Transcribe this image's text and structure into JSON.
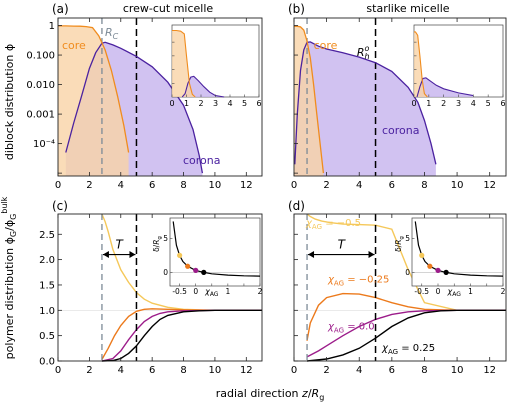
{
  "figure": {
    "ylabel_top": "diblock distribution ϕ",
    "ylabel_bottom": "polymer distribution ϕG/ϕGbulk",
    "xlabel": "radial direction z/Rg"
  },
  "colors": {
    "core_line": "#f08c1e",
    "core_fill": "#f9d3a6",
    "corona_line": "#4b22a0",
    "corona_fill": "#c9b7ee",
    "dashed_gray": "#7d8b97",
    "dashed_black": "#000000",
    "chi_m05": "#f5c85a",
    "chi_m025": "#ec7a1c",
    "chi_0": "#9c1c8a",
    "chi_025": "#000000"
  },
  "chart_data": [
    {
      "id": "a",
      "panel_label": "(a)",
      "title": "crew-cut micelle",
      "type": "area",
      "yscale": "log",
      "xlim": [
        0,
        13
      ],
      "ylim": [
        8e-06,
        1.8
      ],
      "x_ticks": [
        "0",
        "2",
        "4",
        "6",
        "8",
        "10",
        "12"
      ],
      "y_ticks": [
        {
          "v": 1,
          "label": "1"
        },
        {
          "v": 0.1,
          "label": "0.100"
        },
        {
          "v": 0.01,
          "label": "0.010"
        },
        {
          "v": 0.001,
          "label": "0.001"
        },
        {
          "v": 0.0001,
          "label": "10⁻⁴"
        }
      ],
      "vlines": {
        "gray": 2.8,
        "black": 5.0
      },
      "annotations": {
        "rc": "R",
        "rc_sub": "C",
        "core": "core",
        "corona": "corona"
      },
      "series": [
        {
          "name": "core",
          "x": [
            0,
            0.5,
            1.0,
            1.4,
            1.8,
            2.2,
            2.6,
            3.0,
            3.4,
            3.8,
            4.2,
            4.5
          ],
          "y": [
            0.97,
            0.97,
            0.96,
            0.95,
            0.92,
            0.85,
            0.45,
            0.15,
            0.03,
            0.004,
            0.0004,
            5e-05
          ]
        },
        {
          "name": "corona",
          "x": [
            0.5,
            1.0,
            1.5,
            2.0,
            2.4,
            2.8,
            3.0,
            3.5,
            4.0,
            5.0,
            6.0,
            7.0,
            8.0,
            8.6,
            9.0,
            9.2
          ],
          "y": [
            5e-05,
            0.0005,
            0.004,
            0.035,
            0.12,
            0.25,
            0.27,
            0.22,
            0.17,
            0.09,
            0.04,
            0.012,
            0.002,
            0.0003,
            4e-05,
            1e-05
          ]
        }
      ],
      "inset": {
        "xlim": [
          0,
          6
        ],
        "ylim": [
          0,
          1.05
        ],
        "x_ticks": [
          "0",
          "1",
          "2",
          "3",
          "4",
          "5",
          "6"
        ],
        "series": [
          {
            "name": "core",
            "x": [
              0,
              0.3,
              0.6,
              0.85,
              1.0,
              1.2,
              1.4,
              1.6
            ],
            "y": [
              0.97,
              0.97,
              0.96,
              0.92,
              0.6,
              0.2,
              0.04,
              0.0
            ]
          },
          {
            "name": "corona",
            "x": [
              0.7,
              0.9,
              1.1,
              1.3,
              1.5,
              1.8,
              2.2,
              2.6,
              3.0,
              3.6
            ],
            "y": [
              0.0,
              0.05,
              0.2,
              0.29,
              0.3,
              0.24,
              0.15,
              0.07,
              0.02,
              0.0
            ]
          }
        ]
      }
    },
    {
      "id": "b",
      "panel_label": "(b)",
      "title": "starlike micelle",
      "type": "area",
      "yscale": "log",
      "xlim": [
        0,
        13
      ],
      "ylim": [
        8e-06,
        1.8
      ],
      "x_ticks": [
        "0",
        "2",
        "4",
        "6",
        "8",
        "10",
        "12"
      ],
      "y_ticks": [],
      "vlines": {
        "gray": 0.8,
        "black": 5.0
      },
      "annotations": {
        "rh": "R",
        "rh_sub": "h",
        "rh_sup": "o",
        "core": "core",
        "corona": "corona"
      },
      "series": [
        {
          "name": "core",
          "x": [
            0,
            0.2,
            0.4,
            0.6,
            0.8,
            1.0,
            1.2,
            1.4,
            1.6,
            1.8
          ],
          "y": [
            0.95,
            0.94,
            0.9,
            0.7,
            0.3,
            0.08,
            0.01,
            0.001,
            0.0001,
            1e-05
          ]
        },
        {
          "name": "corona",
          "x": [
            0.05,
            0.2,
            0.4,
            0.6,
            0.8,
            1.0,
            1.5,
            2.0,
            3.0,
            4.0,
            5.0,
            6.0,
            7.0,
            7.6,
            8.0,
            8.4,
            8.7
          ],
          "y": [
            2e-05,
            0.001,
            0.03,
            0.15,
            0.27,
            0.28,
            0.2,
            0.16,
            0.12,
            0.085,
            0.055,
            0.028,
            0.008,
            0.0025,
            0.0006,
            0.0001,
            2e-05
          ]
        }
      ],
      "inset": {
        "xlim": [
          0,
          6
        ],
        "ylim": [
          0,
          1.05
        ],
        "x_ticks": [
          "0",
          "1",
          "2",
          "3",
          "4",
          "5",
          "6"
        ],
        "series": [
          {
            "name": "core",
            "x": [
              0,
              0.1,
              0.25,
              0.4,
              0.55,
              0.7,
              0.9
            ],
            "y": [
              0.95,
              0.95,
              0.9,
              0.6,
              0.25,
              0.05,
              0.0
            ]
          },
          {
            "name": "corona",
            "x": [
              0.2,
              0.4,
              0.6,
              0.8,
              1.0,
              1.5,
              2.0,
              3.0,
              4.0
            ],
            "y": [
              0.0,
              0.15,
              0.27,
              0.28,
              0.25,
              0.17,
              0.12,
              0.06,
              0.02
            ]
          }
        ]
      }
    },
    {
      "id": "c",
      "panel_label": "(c)",
      "type": "line",
      "xlim": [
        0,
        13
      ],
      "ylim": [
        0,
        2.9
      ],
      "x_ticks": [
        "0",
        "2",
        "4",
        "6",
        "8",
        "10",
        "12"
      ],
      "y_ticks": [
        "0.0",
        "0.5",
        "1.0",
        "1.5",
        "2.0",
        "2.5"
      ],
      "vlines": {
        "gray": 2.8,
        "black": 5.0
      },
      "arrow_label": "T",
      "series": [
        {
          "name": "χAG = -0.5",
          "x": [
            2.8,
            3.0,
            3.2,
            3.5,
            4.0,
            4.5,
            5.0,
            5.5,
            6.0,
            7.0,
            8.0,
            10.0,
            13.0
          ],
          "y": [
            2.9,
            2.75,
            2.55,
            2.2,
            1.8,
            1.55,
            1.35,
            1.22,
            1.14,
            1.06,
            1.02,
            1.0,
            1.0
          ]
        },
        {
          "name": "χAG = -0.25",
          "x": [
            2.8,
            3.2,
            3.6,
            4.0,
            4.5,
            5.0,
            5.5,
            6.0,
            7.0,
            8.0,
            10.0,
            13.0
          ],
          "y": [
            0.03,
            0.25,
            0.5,
            0.7,
            0.88,
            0.98,
            1.02,
            1.03,
            1.02,
            1.01,
            1.0,
            1.0
          ]
        },
        {
          "name": "χAG = 0.0",
          "x": [
            2.8,
            3.5,
            4.0,
            4.5,
            5.0,
            5.5,
            6.0,
            6.5,
            7.0,
            8.0,
            10.0,
            13.0
          ],
          "y": [
            0.0,
            0.05,
            0.2,
            0.42,
            0.62,
            0.78,
            0.88,
            0.94,
            0.97,
            0.99,
            1.0,
            1.0
          ]
        },
        {
          "name": "χAG = 0.25",
          "x": [
            2.8,
            3.5,
            4.0,
            4.5,
            5.0,
            5.5,
            6.0,
            6.5,
            7.0,
            8.0,
            9.0,
            10.0,
            13.0
          ],
          "y": [
            0.0,
            0.01,
            0.05,
            0.15,
            0.3,
            0.5,
            0.68,
            0.82,
            0.9,
            0.97,
            0.99,
            1.0,
            1.0
          ]
        }
      ],
      "inset": {
        "xlim": [
          -0.8,
          2.0
        ],
        "ylim": [
          -2.0,
          8.0
        ],
        "x_ticks": [
          "-0.5",
          "0",
          "0.5",
          "1",
          "1.5",
          "2"
        ],
        "y_ticks": [
          "0",
          "5"
        ],
        "xlabel": "χAG",
        "ylabel": "δ/Rg",
        "curve_x": [
          -0.7,
          -0.6,
          -0.5,
          -0.4,
          -0.25,
          0.0,
          0.25,
          0.5,
          1.0,
          1.5,
          2.0
        ],
        "curve_y": [
          7.5,
          4.0,
          2.5,
          1.6,
          0.9,
          0.3,
          0.0,
          -0.2,
          -0.4,
          -0.5,
          -0.55
        ],
        "points": [
          {
            "x": -0.5,
            "y": 2.5,
            "name": "χAG = -0.5"
          },
          {
            "x": -0.25,
            "y": 0.9,
            "name": "χAG = -0.25"
          },
          {
            "x": 0.0,
            "y": 0.3,
            "name": "χAG = 0.0"
          },
          {
            "x": 0.25,
            "y": 0.0,
            "name": "χAG = 0.25"
          }
        ]
      }
    },
    {
      "id": "d",
      "panel_label": "(d)",
      "type": "line",
      "xlim": [
        0,
        13
      ],
      "ylim": [
        0,
        2.9
      ],
      "x_ticks": [
        "0",
        "2",
        "4",
        "6",
        "8",
        "10",
        "12"
      ],
      "y_ticks": [],
      "vlines": {
        "gray": 0.8,
        "black": 5.0
      },
      "arrow_label": "T",
      "labels": {
        "m05": "χAG = −0.5",
        "m025": "χAG = −0.25",
        "z0": "χAG = 0.0",
        "p025": "χAG = 0.25"
      },
      "series": [
        {
          "name": "χAG = -0.5",
          "x": [
            0.8,
            1.0,
            1.3,
            1.7,
            2.2,
            3.0,
            4.0,
            5.0,
            6.0,
            7.0,
            8.0,
            10.0,
            13.0
          ],
          "y": [
            2.9,
            2.85,
            2.8,
            2.76,
            2.73,
            2.7,
            2.69,
            2.68,
            2.6,
            1.8,
            1.15,
            1.0,
            1.0
          ]
        },
        {
          "name": "χAG = -0.25",
          "x": [
            0.8,
            1.0,
            1.5,
            2.0,
            3.0,
            4.0,
            5.0,
            6.0,
            7.0,
            8.0,
            10.0,
            13.0
          ],
          "y": [
            0.4,
            0.75,
            1.1,
            1.25,
            1.33,
            1.32,
            1.25,
            1.15,
            1.07,
            1.02,
            1.0,
            1.0
          ]
        },
        {
          "name": "χAG = 0.0",
          "x": [
            0.8,
            1.5,
            2.0,
            3.0,
            4.0,
            5.0,
            6.0,
            7.0,
            8.0,
            10.0,
            13.0
          ],
          "y": [
            0.08,
            0.2,
            0.3,
            0.5,
            0.68,
            0.82,
            0.92,
            0.97,
            0.99,
            1.0,
            1.0
          ]
        },
        {
          "name": "χAG = 0.25",
          "x": [
            0.8,
            2.0,
            3.0,
            4.0,
            5.0,
            6.0,
            7.0,
            8.0,
            9.0,
            10.0,
            13.0
          ],
          "y": [
            0.0,
            0.04,
            0.12,
            0.25,
            0.45,
            0.68,
            0.85,
            0.95,
            0.99,
            1.0,
            1.0
          ]
        }
      ],
      "inset": {
        "xlim": [
          -0.8,
          2.0
        ],
        "ylim": [
          -2.0,
          8.0
        ],
        "x_ticks": [
          "-0.5",
          "0",
          "0.5",
          "1",
          "1.5",
          "2"
        ],
        "y_ticks": [
          "0",
          "5"
        ],
        "xlabel": "χAG",
        "ylabel": "δ/Rg",
        "curve_x": [
          -0.7,
          -0.6,
          -0.5,
          -0.4,
          -0.25,
          0.0,
          0.25,
          0.5,
          1.0,
          1.5,
          2.0
        ],
        "curve_y": [
          7.5,
          4.0,
          2.5,
          1.6,
          0.9,
          0.3,
          0.0,
          -0.2,
          -0.4,
          -0.5,
          -0.55
        ],
        "points": [
          {
            "x": -0.5,
            "y": 2.5,
            "name": "χAG = -0.5"
          },
          {
            "x": -0.25,
            "y": 0.9,
            "name": "χAG = -0.25"
          },
          {
            "x": 0.0,
            "y": 0.3,
            "name": "χAG = 0.0"
          },
          {
            "x": 0.25,
            "y": 0.0,
            "name": "χAG = 0.25"
          }
        ]
      }
    }
  ]
}
